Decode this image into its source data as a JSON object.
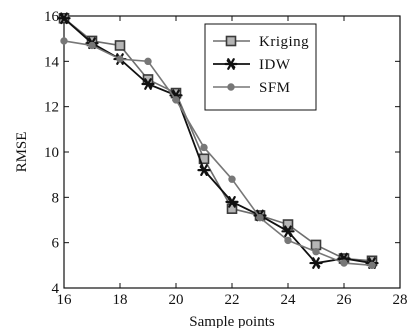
{
  "chart_data": {
    "type": "line",
    "xlabel": "Sample points",
    "ylabel": "RMSE",
    "xlim": [
      16,
      28
    ],
    "ylim": [
      4,
      16
    ],
    "xticks": [
      16,
      18,
      20,
      22,
      24,
      26,
      28
    ],
    "yticks": [
      4,
      6,
      8,
      10,
      12,
      14,
      16
    ],
    "grid": false,
    "legend_position": "top-right",
    "x": [
      16,
      17,
      18,
      19,
      20,
      21,
      22,
      23,
      24,
      25,
      26,
      27
    ],
    "series": [
      {
        "name": "Kriging",
        "marker": "square",
        "color": "#6e6e6e",
        "values": [
          15.9,
          14.9,
          14.7,
          13.2,
          12.6,
          9.7,
          7.5,
          7.2,
          6.8,
          5.9,
          5.3,
          5.2
        ]
      },
      {
        "name": "IDW",
        "marker": "asterisk",
        "color": "#111111",
        "values": [
          15.9,
          14.8,
          14.1,
          13.0,
          12.5,
          9.2,
          7.8,
          7.2,
          6.5,
          5.1,
          5.3,
          5.1
        ]
      },
      {
        "name": "SFM",
        "marker": "dot",
        "color": "#777777",
        "values": [
          14.9,
          14.7,
          14.1,
          14.0,
          12.3,
          10.2,
          8.8,
          7.1,
          6.1,
          5.6,
          5.1,
          5.0
        ]
      }
    ]
  }
}
